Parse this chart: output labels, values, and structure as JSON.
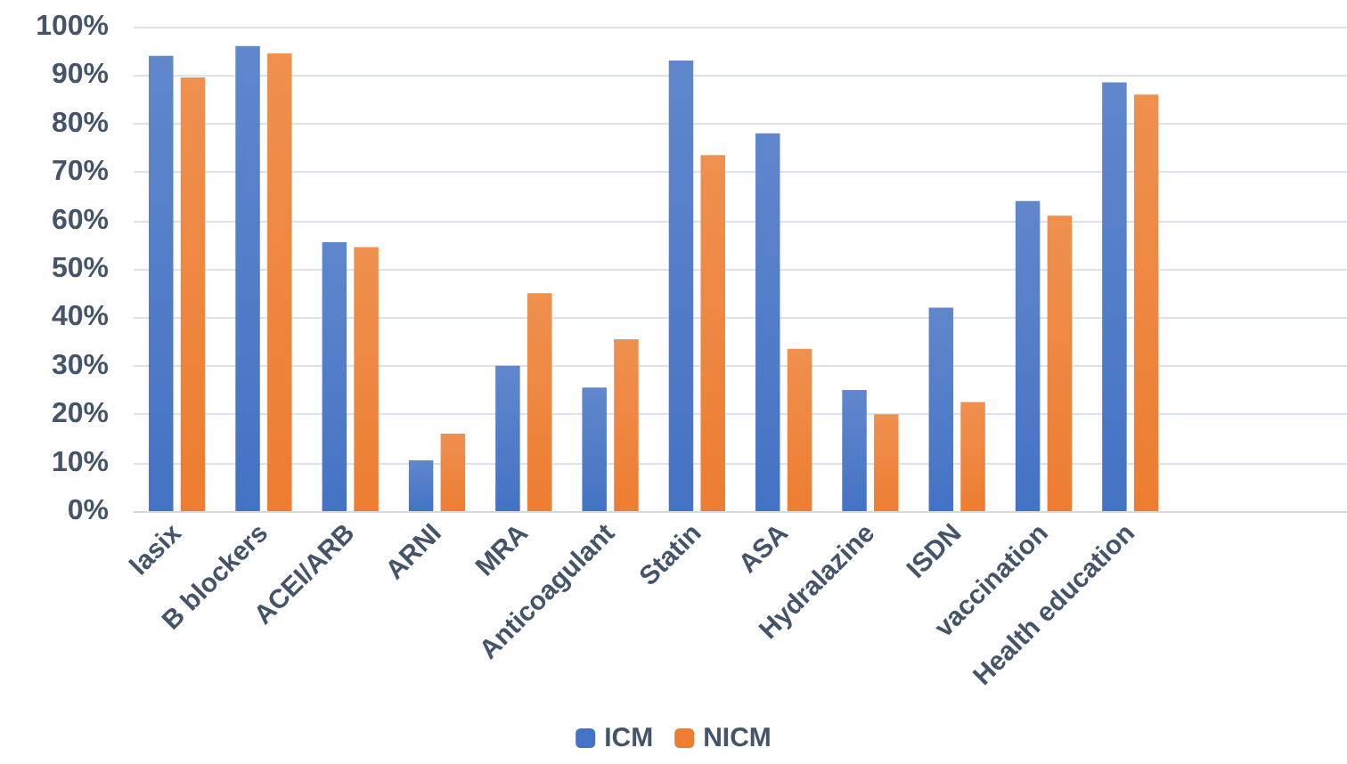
{
  "chart_data": {
    "type": "bar",
    "categories": [
      "lasix",
      "B blockers",
      "ACEI/ARB",
      "ARNI",
      "MRA",
      "Anticoagulant",
      "Statin",
      "ASA",
      "Hydralazine",
      "ISDN",
      "vaccination",
      "Health education",
      null,
      null
    ],
    "series": [
      {
        "name": "ICM",
        "color": "#4472c4",
        "values": [
          94,
          96,
          55.5,
          10.5,
          30,
          25.5,
          93,
          78,
          25,
          42,
          64,
          88.5,
          null,
          null
        ]
      },
      {
        "name": "NICM",
        "color": "#ed7d31",
        "values": [
          89.5,
          94.5,
          54.5,
          16,
          45,
          35.5,
          73.5,
          33.5,
          20,
          22.5,
          61,
          86,
          null,
          null
        ]
      }
    ],
    "ylim": [
      0,
      100
    ],
    "yticks": [
      {
        "value": 0,
        "label": "0%"
      },
      {
        "value": 10,
        "label": "10%"
      },
      {
        "value": 20,
        "label": "20%"
      },
      {
        "value": 30,
        "label": "30%"
      },
      {
        "value": 40,
        "label": "40%"
      },
      {
        "value": 50,
        "label": "50%"
      },
      {
        "value": 60,
        "label": "60%"
      },
      {
        "value": 70,
        "label": "70%"
      },
      {
        "value": 80,
        "label": "80%"
      },
      {
        "value": 90,
        "label": "90%"
      },
      {
        "value": 100,
        "label": "100%"
      }
    ],
    "grid": "y",
    "legend": "bottom"
  }
}
